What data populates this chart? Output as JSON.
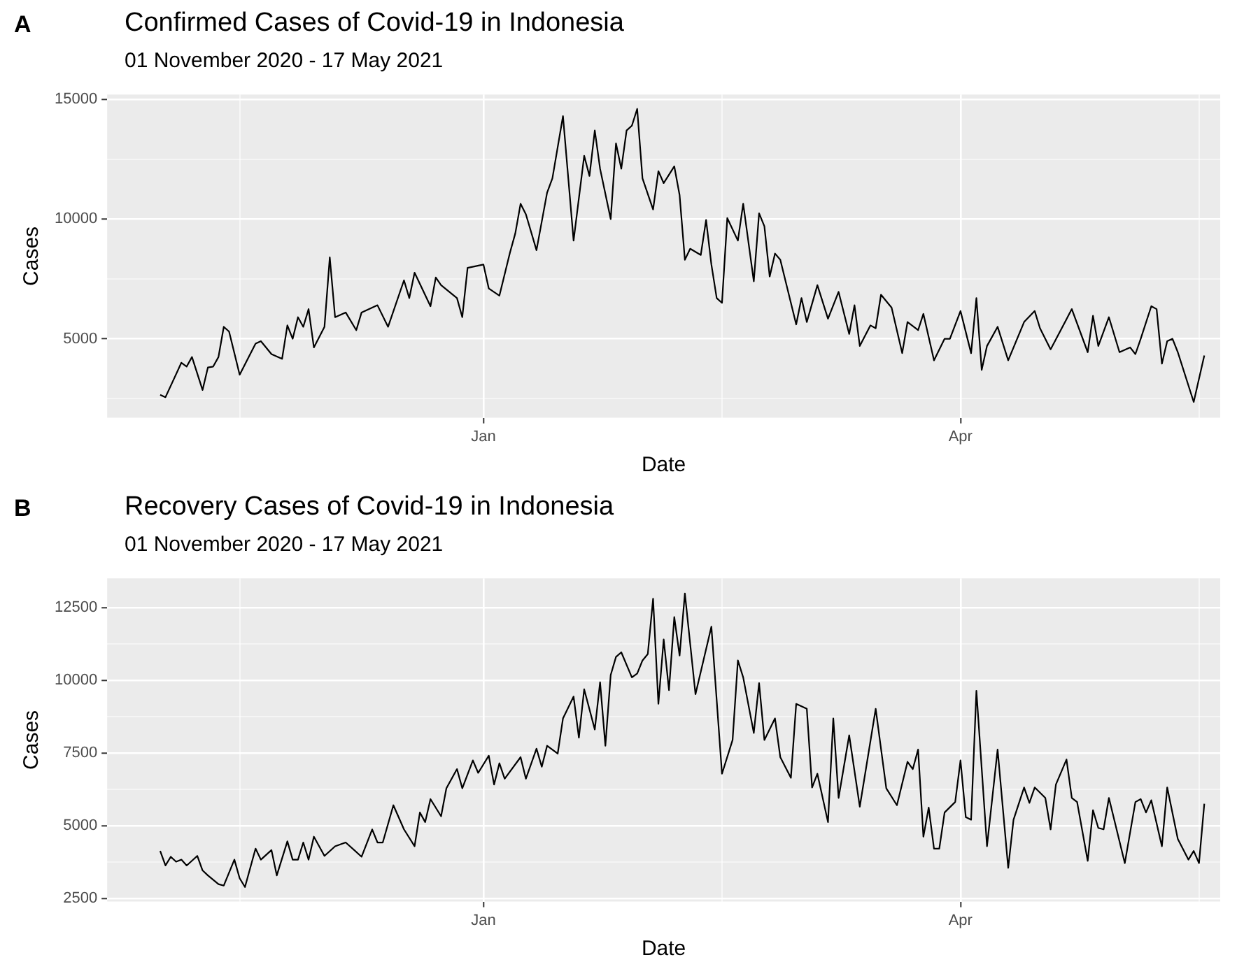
{
  "chart_data": [
    {
      "type": "line",
      "title": "Confirmed Cases of Covid-19 in Indonesia",
      "subtitle": "01 November 2020 - 17 May 2021",
      "xlabel": "Date",
      "ylabel": "Cases",
      "annotations": [
        "A"
      ],
      "grid": true,
      "xlim": [
        "2020-10-22",
        "2021-05-20"
      ],
      "xticks": [
        {
          "value": "2020-11-16",
          "label": null
        },
        {
          "value": "2021-01-01",
          "label": "Jan"
        },
        {
          "value": "2021-02-15",
          "label": null
        },
        {
          "value": "2021-04-01",
          "label": "Apr"
        },
        {
          "value": "2021-05-16",
          "label": null
        }
      ],
      "ylim": [
        1700,
        15200
      ],
      "yticks": [
        {
          "value": 2500,
          "label": null
        },
        5000,
        {
          "value": 7500,
          "label": null
        },
        10000,
        {
          "value": 12500,
          "label": null
        },
        15000
      ],
      "x": [
        "2020-11-01",
        "2020-11-02",
        "2020-11-05",
        "2020-11-06",
        "2020-11-07",
        "2020-11-09",
        "2020-11-10",
        "2020-11-11",
        "2020-11-12",
        "2020-11-13",
        "2020-11-14",
        "2020-11-16",
        "2020-11-19",
        "2020-11-20",
        "2020-11-22",
        "2020-11-24",
        "2020-11-25",
        "2020-11-26",
        "2020-11-27",
        "2020-11-28",
        "2020-11-29",
        "2020-11-30",
        "2020-12-02",
        "2020-12-03",
        "2020-12-04",
        "2020-12-06",
        "2020-12-08",
        "2020-12-09",
        "2020-12-12",
        "2020-12-14",
        "2020-12-17",
        "2020-12-18",
        "2020-12-19",
        "2020-12-22",
        "2020-12-23",
        "2020-12-24",
        "2020-12-27",
        "2020-12-28",
        "2020-12-29",
        "2021-01-01",
        "2021-01-02",
        "2021-01-04",
        "2021-01-06",
        "2021-01-07",
        "2021-01-08",
        "2021-01-09",
        "2021-01-11",
        "2021-01-13",
        "2021-01-14",
        "2021-01-16",
        "2021-01-18",
        "2021-01-20",
        "2021-01-21",
        "2021-01-22",
        "2021-01-23",
        "2021-01-25",
        "2021-01-26",
        "2021-01-27",
        "2021-01-28",
        "2021-01-29",
        "2021-01-30",
        "2021-01-31",
        "2021-02-02",
        "2021-02-03",
        "2021-02-04",
        "2021-02-06",
        "2021-02-07",
        "2021-02-08",
        "2021-02-09",
        "2021-02-11",
        "2021-02-12",
        "2021-02-13",
        "2021-02-14",
        "2021-02-15",
        "2021-02-16",
        "2021-02-18",
        "2021-02-19",
        "2021-02-21",
        "2021-02-22",
        "2021-02-23",
        "2021-02-24",
        "2021-02-25",
        "2021-02-26",
        "2021-03-01",
        "2021-03-02",
        "2021-03-03",
        "2021-03-05",
        "2021-03-07",
        "2021-03-09",
        "2021-03-11",
        "2021-03-12",
        "2021-03-13",
        "2021-03-15",
        "2021-03-16",
        "2021-03-17",
        "2021-03-19",
        "2021-03-21",
        "2021-03-22",
        "2021-03-24",
        "2021-03-25",
        "2021-03-27",
        "2021-03-29",
        "2021-03-30",
        "2021-04-01",
        "2021-04-03",
        "2021-04-04",
        "2021-04-05",
        "2021-04-06",
        "2021-04-08",
        "2021-04-10",
        "2021-04-13",
        "2021-04-15",
        "2021-04-16",
        "2021-04-18",
        "2021-04-22",
        "2021-04-25",
        "2021-04-26",
        "2021-04-27",
        "2021-04-29",
        "2021-05-01",
        "2021-05-03",
        "2021-05-04",
        "2021-05-05",
        "2021-05-07",
        "2021-05-08",
        "2021-05-09",
        "2021-05-10",
        "2021-05-11",
        "2021-05-12",
        "2021-05-15",
        "2021-05-17"
      ],
      "series": [
        {
          "color": "#000000",
          "values": [
            2660,
            2560,
            4000,
            3840,
            4240,
            2860,
            3800,
            3840,
            4240,
            5500,
            5300,
            3500,
            4800,
            4900,
            4360,
            4160,
            5560,
            5000,
            5900,
            5500,
            6240,
            4640,
            5500,
            8400,
            5900,
            6100,
            5360,
            6100,
            6400,
            5500,
            7440,
            6700,
            7760,
            6360,
            7560,
            7240,
            6700,
            5900,
            7960,
            8100,
            7100,
            6800,
            8600,
            9400,
            10640,
            10200,
            8700,
            11100,
            11700,
            14300,
            9100,
            12640,
            11800,
            13700,
            12100,
            10000,
            13160,
            12100,
            13700,
            13900,
            14600,
            11700,
            10400,
            12000,
            11500,
            12200,
            11000,
            8300,
            8760,
            8500,
            9960,
            8100,
            6700,
            6500,
            10040,
            9100,
            10640,
            7400,
            10240,
            9700,
            7600,
            8560,
            8300,
            5600,
            6700,
            5700,
            7240,
            5840,
            6960,
            5200,
            6400,
            4700,
            5560,
            5440,
            6840,
            6300,
            4400,
            5700,
            5360,
            6040,
            4100,
            5000,
            5000,
            6160,
            4400,
            6700,
            3700,
            4700,
            5500,
            4100,
            5700,
            6160,
            5440,
            4560,
            6240,
            4440,
            5960,
            4700,
            5900,
            4440,
            4640,
            4360,
            5000,
            6360,
            6240,
            3960,
            4900,
            5000,
            4440,
            2360,
            4300
          ]
        }
      ]
    },
    {
      "type": "line",
      "title": "Recovery Cases of Covid-19 in Indonesia",
      "subtitle": "01 November 2020 - 17 May 2021",
      "xlabel": "Date",
      "ylabel": "Cases",
      "annotations": [
        "B"
      ],
      "grid": true,
      "xlim": [
        "2020-10-22",
        "2021-05-20"
      ],
      "xticks": [
        {
          "value": "2020-11-16",
          "label": null
        },
        {
          "value": "2021-01-01",
          "label": "Jan"
        },
        {
          "value": "2021-02-15",
          "label": null
        },
        {
          "value": "2021-04-01",
          "label": "Apr"
        },
        {
          "value": "2021-05-16",
          "label": null
        }
      ],
      "ylim": [
        2400,
        13500
      ],
      "yticks": [
        2500,
        {
          "value": 3750,
          "label": null
        },
        5000,
        {
          "value": 6250,
          "label": null
        },
        7500,
        {
          "value": 8750,
          "label": null
        },
        10000,
        {
          "value": 11250,
          "label": null
        },
        12500
      ],
      "x": [
        "2020-11-01",
        "2020-11-02",
        "2020-11-03",
        "2020-11-04",
        "2020-11-05",
        "2020-11-06",
        "2020-11-08",
        "2020-11-09",
        "2020-11-10",
        "2020-11-12",
        "2020-11-13",
        "2020-11-15",
        "2020-11-16",
        "2020-11-17",
        "2020-11-19",
        "2020-11-20",
        "2020-11-22",
        "2020-11-23",
        "2020-11-25",
        "2020-11-26",
        "2020-11-27",
        "2020-11-28",
        "2020-11-29",
        "2020-11-30",
        "2020-12-02",
        "2020-12-04",
        "2020-12-06",
        "2020-12-09",
        "2020-12-11",
        "2020-12-12",
        "2020-12-13",
        "2020-12-15",
        "2020-12-17",
        "2020-12-19",
        "2020-12-20",
        "2020-12-21",
        "2020-12-22",
        "2020-12-24",
        "2020-12-25",
        "2020-12-27",
        "2020-12-28",
        "2020-12-30",
        "2020-12-31",
        "2021-01-02",
        "2021-01-03",
        "2021-01-04",
        "2021-01-05",
        "2021-01-08",
        "2021-01-09",
        "2021-01-11",
        "2021-01-12",
        "2021-01-13",
        "2021-01-15",
        "2021-01-16",
        "2021-01-18",
        "2021-01-19",
        "2021-01-20",
        "2021-01-22",
        "2021-01-23",
        "2021-01-24",
        "2021-01-25",
        "2021-01-26",
        "2021-01-27",
        "2021-01-29",
        "2021-01-30",
        "2021-01-31",
        "2021-02-01",
        "2021-02-02",
        "2021-02-03",
        "2021-02-04",
        "2021-02-05",
        "2021-02-06",
        "2021-02-07",
        "2021-02-08",
        "2021-02-10",
        "2021-02-13",
        "2021-02-15",
        "2021-02-17",
        "2021-02-18",
        "2021-02-19",
        "2021-02-21",
        "2021-02-22",
        "2021-02-23",
        "2021-02-25",
        "2021-02-26",
        "2021-02-28",
        "2021-03-01",
        "2021-03-03",
        "2021-03-04",
        "2021-03-05",
        "2021-03-07",
        "2021-03-08",
        "2021-03-09",
        "2021-03-11",
        "2021-03-13",
        "2021-03-16",
        "2021-03-18",
        "2021-03-20",
        "2021-03-22",
        "2021-03-23",
        "2021-03-24",
        "2021-03-25",
        "2021-03-26",
        "2021-03-27",
        "2021-03-28",
        "2021-03-29",
        "2021-03-31",
        "2021-04-01",
        "2021-04-02",
        "2021-04-03",
        "2021-04-04",
        "2021-04-06",
        "2021-04-08",
        "2021-04-10",
        "2021-04-11",
        "2021-04-13",
        "2021-04-14",
        "2021-04-15",
        "2021-04-17",
        "2021-04-18",
        "2021-04-19",
        "2021-04-21",
        "2021-04-22",
        "2021-04-23",
        "2021-04-25",
        "2021-04-26",
        "2021-04-27",
        "2021-04-28",
        "2021-04-29",
        "2021-05-02",
        "2021-05-04",
        "2021-05-05",
        "2021-05-06",
        "2021-05-07",
        "2021-05-09",
        "2021-05-10",
        "2021-05-12",
        "2021-05-14",
        "2021-05-15",
        "2021-05-16",
        "2021-05-17"
      ],
      "series": [
        {
          "color": "#000000",
          "values": [
            4140,
            3640,
            3940,
            3770,
            3840,
            3640,
            3970,
            3470,
            3300,
            3000,
            2950,
            3840,
            3200,
            2900,
            4220,
            3840,
            4170,
            3300,
            4470,
            3840,
            3840,
            4430,
            3840,
            4630,
            3970,
            4300,
            4430,
            3940,
            4880,
            4430,
            4430,
            5710,
            4880,
            4300,
            5460,
            5130,
            5920,
            5330,
            6290,
            6950,
            6290,
            7250,
            6820,
            7410,
            6420,
            7150,
            6620,
            7360,
            6620,
            7650,
            7030,
            7750,
            7480,
            8690,
            9440,
            8030,
            9690,
            8310,
            9930,
            7750,
            10180,
            10800,
            10960,
            10100,
            10230,
            10680,
            10900,
            12800,
            9190,
            11400,
            9660,
            12170,
            10850,
            12980,
            9520,
            11840,
            6790,
            7950,
            10680,
            10100,
            8190,
            9900,
            7950,
            8690,
            7360,
            6650,
            9190,
            9020,
            6320,
            6790,
            5130,
            8690,
            5960,
            8110,
            5660,
            9020,
            6290,
            5710,
            7200,
            6950,
            7620,
            4630,
            5630,
            4220,
            4220,
            5460,
            5820,
            7250,
            5300,
            5210,
            9640,
            4300,
            7620,
            3560,
            5210,
            6320,
            5790,
            6320,
            5960,
            4880,
            6420,
            7280,
            5960,
            5820,
            3800,
            5540,
            4930,
            4880,
            5960,
            3720,
            5820,
            5920,
            5460,
            5880,
            4300,
            6320,
            4550,
            3840,
            4140,
            3720,
            5760
          ]
        }
      ]
    }
  ]
}
